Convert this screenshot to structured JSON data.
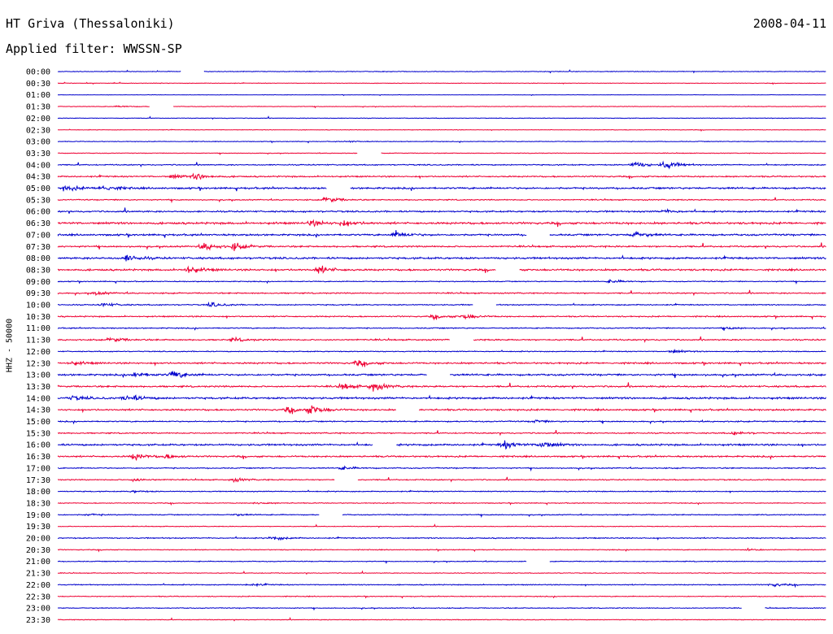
{
  "header": {
    "station": "HT Griva (Thessaloniki)",
    "date": "2008-04-11",
    "filter_label": "Applied filter: WWSSN-SP"
  },
  "chart_data": {
    "type": "line",
    "ylabel": "HHZ - 50000",
    "colors": [
      "#0000cc",
      "#ee0033"
    ],
    "rows": [
      {
        "label": "00:00",
        "amp": 1.0,
        "gaps": [
          [
            0.16,
            0.19
          ]
        ],
        "events": []
      },
      {
        "label": "00:30",
        "amp": 0.8,
        "gaps": [],
        "events": []
      },
      {
        "label": "01:00",
        "amp": 0.6,
        "gaps": [],
        "events": []
      },
      {
        "label": "01:30",
        "amp": 0.8,
        "gaps": [
          [
            0.12,
            0.15
          ]
        ],
        "events": [
          [
            0.08,
            2.5
          ]
        ]
      },
      {
        "label": "02:00",
        "amp": 0.9,
        "gaps": [],
        "events": []
      },
      {
        "label": "02:30",
        "amp": 0.8,
        "gaps": [],
        "events": []
      },
      {
        "label": "03:00",
        "amp": 1.0,
        "gaps": [],
        "events": [
          [
            0.38,
            2
          ]
        ]
      },
      {
        "label": "03:30",
        "amp": 0.9,
        "gaps": [
          [
            0.39,
            0.42
          ]
        ],
        "events": []
      },
      {
        "label": "04:00",
        "amp": 1.6,
        "gaps": [],
        "events": [
          [
            0.75,
            10
          ],
          [
            0.79,
            14
          ]
        ]
      },
      {
        "label": "04:30",
        "amp": 2.0,
        "gaps": [],
        "events": [
          [
            0.15,
            6
          ],
          [
            0.18,
            9
          ]
        ]
      },
      {
        "label": "05:00",
        "amp": 2.6,
        "gaps": [
          [
            0.35,
            0.38
          ]
        ],
        "events": [
          [
            0.01,
            8
          ],
          [
            0.06,
            10
          ]
        ]
      },
      {
        "label": "05:30",
        "amp": 1.6,
        "gaps": [],
        "events": [
          [
            0.35,
            10
          ]
        ]
      },
      {
        "label": "06:00",
        "amp": 2.3,
        "gaps": [],
        "events": [
          [
            0.79,
            5
          ]
        ]
      },
      {
        "label": "06:30",
        "amp": 3.0,
        "gaps": [],
        "events": [
          [
            0.33,
            8
          ],
          [
            0.37,
            9
          ]
        ]
      },
      {
        "label": "07:00",
        "amp": 2.6,
        "gaps": [
          [
            0.61,
            0.64
          ]
        ],
        "events": [
          [
            0.44,
            10
          ],
          [
            0.75,
            9
          ]
        ]
      },
      {
        "label": "07:30",
        "amp": 2.3,
        "gaps": [],
        "events": [
          [
            0.19,
            11
          ],
          [
            0.23,
            10
          ]
        ]
      },
      {
        "label": "08:00",
        "amp": 2.8,
        "gaps": [],
        "events": [
          [
            0.09,
            10
          ]
        ]
      },
      {
        "label": "08:30",
        "amp": 2.6,
        "gaps": [
          [
            0.57,
            0.6
          ]
        ],
        "events": [
          [
            0.17,
            11
          ],
          [
            0.34,
            11
          ]
        ]
      },
      {
        "label": "09:00",
        "amp": 1.4,
        "gaps": [],
        "events": [
          [
            0.72,
            5
          ]
        ]
      },
      {
        "label": "09:30",
        "amp": 1.8,
        "gaps": [],
        "events": [
          [
            0.05,
            5
          ]
        ]
      },
      {
        "label": "10:00",
        "amp": 1.6,
        "gaps": [
          [
            0.54,
            0.57
          ]
        ],
        "events": [
          [
            0.06,
            6
          ],
          [
            0.2,
            7
          ]
        ]
      },
      {
        "label": "10:30",
        "amp": 1.8,
        "gaps": [],
        "events": [
          [
            0.49,
            6
          ],
          [
            0.53,
            8
          ]
        ]
      },
      {
        "label": "11:00",
        "amp": 1.6,
        "gaps": [],
        "events": [
          [
            0.87,
            4
          ]
        ]
      },
      {
        "label": "11:30",
        "amp": 2.0,
        "gaps": [
          [
            0.51,
            0.54
          ]
        ],
        "events": [
          [
            0.07,
            7
          ],
          [
            0.23,
            5
          ]
        ]
      },
      {
        "label": "12:00",
        "amp": 1.4,
        "gaps": [],
        "events": [
          [
            0.8,
            5
          ]
        ]
      },
      {
        "label": "12:30",
        "amp": 2.4,
        "gaps": [],
        "events": [
          [
            0.02,
            5
          ],
          [
            0.39,
            8
          ]
        ]
      },
      {
        "label": "13:00",
        "amp": 2.6,
        "gaps": [
          [
            0.48,
            0.51
          ]
        ],
        "events": [
          [
            0.1,
            8
          ],
          [
            0.15,
            12
          ]
        ]
      },
      {
        "label": "13:30",
        "amp": 2.4,
        "gaps": [],
        "events": [
          [
            0.37,
            10
          ],
          [
            0.41,
            12
          ]
        ]
      },
      {
        "label": "14:00",
        "amp": 2.8,
        "gaps": [],
        "events": [
          [
            0.02,
            6
          ],
          [
            0.09,
            11
          ]
        ]
      },
      {
        "label": "14:30",
        "amp": 2.4,
        "gaps": [
          [
            0.44,
            0.47
          ]
        ],
        "events": [
          [
            0.3,
            9
          ],
          [
            0.33,
            14
          ]
        ]
      },
      {
        "label": "15:00",
        "amp": 1.8,
        "gaps": [],
        "events": [
          [
            0.62,
            4
          ]
        ]
      },
      {
        "label": "15:30",
        "amp": 1.8,
        "gaps": [],
        "events": [
          [
            0.88,
            5
          ]
        ]
      },
      {
        "label": "16:00",
        "amp": 2.6,
        "gaps": [
          [
            0.41,
            0.44
          ]
        ],
        "events": [
          [
            0.58,
            12
          ],
          [
            0.63,
            12
          ]
        ]
      },
      {
        "label": "16:30",
        "amp": 2.3,
        "gaps": [],
        "events": [
          [
            0.1,
            10
          ],
          [
            0.14,
            6
          ]
        ]
      },
      {
        "label": "17:00",
        "amp": 1.6,
        "gaps": [],
        "events": [
          [
            0.37,
            5
          ]
        ]
      },
      {
        "label": "17:30",
        "amp": 1.6,
        "gaps": [
          [
            0.36,
            0.39
          ]
        ],
        "events": [
          [
            0.1,
            5
          ],
          [
            0.23,
            5
          ]
        ]
      },
      {
        "label": "18:00",
        "amp": 1.4,
        "gaps": [],
        "events": [
          [
            0.1,
            3
          ]
        ]
      },
      {
        "label": "18:30",
        "amp": 1.2,
        "gaps": [],
        "events": [
          [
            0.26,
            3
          ]
        ]
      },
      {
        "label": "19:00",
        "amp": 1.4,
        "gaps": [
          [
            0.34,
            0.37
          ]
        ],
        "events": [
          [
            0.04,
            3
          ],
          [
            0.23,
            3
          ]
        ]
      },
      {
        "label": "19:30",
        "amp": 1.0,
        "gaps": [],
        "events": []
      },
      {
        "label": "20:00",
        "amp": 1.6,
        "gaps": [],
        "events": [
          [
            0.28,
            6
          ]
        ]
      },
      {
        "label": "20:30",
        "amp": 1.2,
        "gaps": [],
        "events": [
          [
            0.9,
            4
          ]
        ]
      },
      {
        "label": "21:00",
        "amp": 1.2,
        "gaps": [
          [
            0.61,
            0.64
          ]
        ],
        "events": []
      },
      {
        "label": "21:30",
        "amp": 1.0,
        "gaps": [],
        "events": []
      },
      {
        "label": "22:00",
        "amp": 1.4,
        "gaps": [],
        "events": [
          [
            0.25,
            4
          ],
          [
            0.93,
            5
          ]
        ]
      },
      {
        "label": "22:30",
        "amp": 1.2,
        "gaps": [],
        "events": []
      },
      {
        "label": "23:00",
        "amp": 1.2,
        "gaps": [
          [
            0.89,
            0.92
          ]
        ],
        "events": []
      },
      {
        "label": "23:30",
        "amp": 1.0,
        "gaps": [],
        "events": []
      }
    ]
  }
}
